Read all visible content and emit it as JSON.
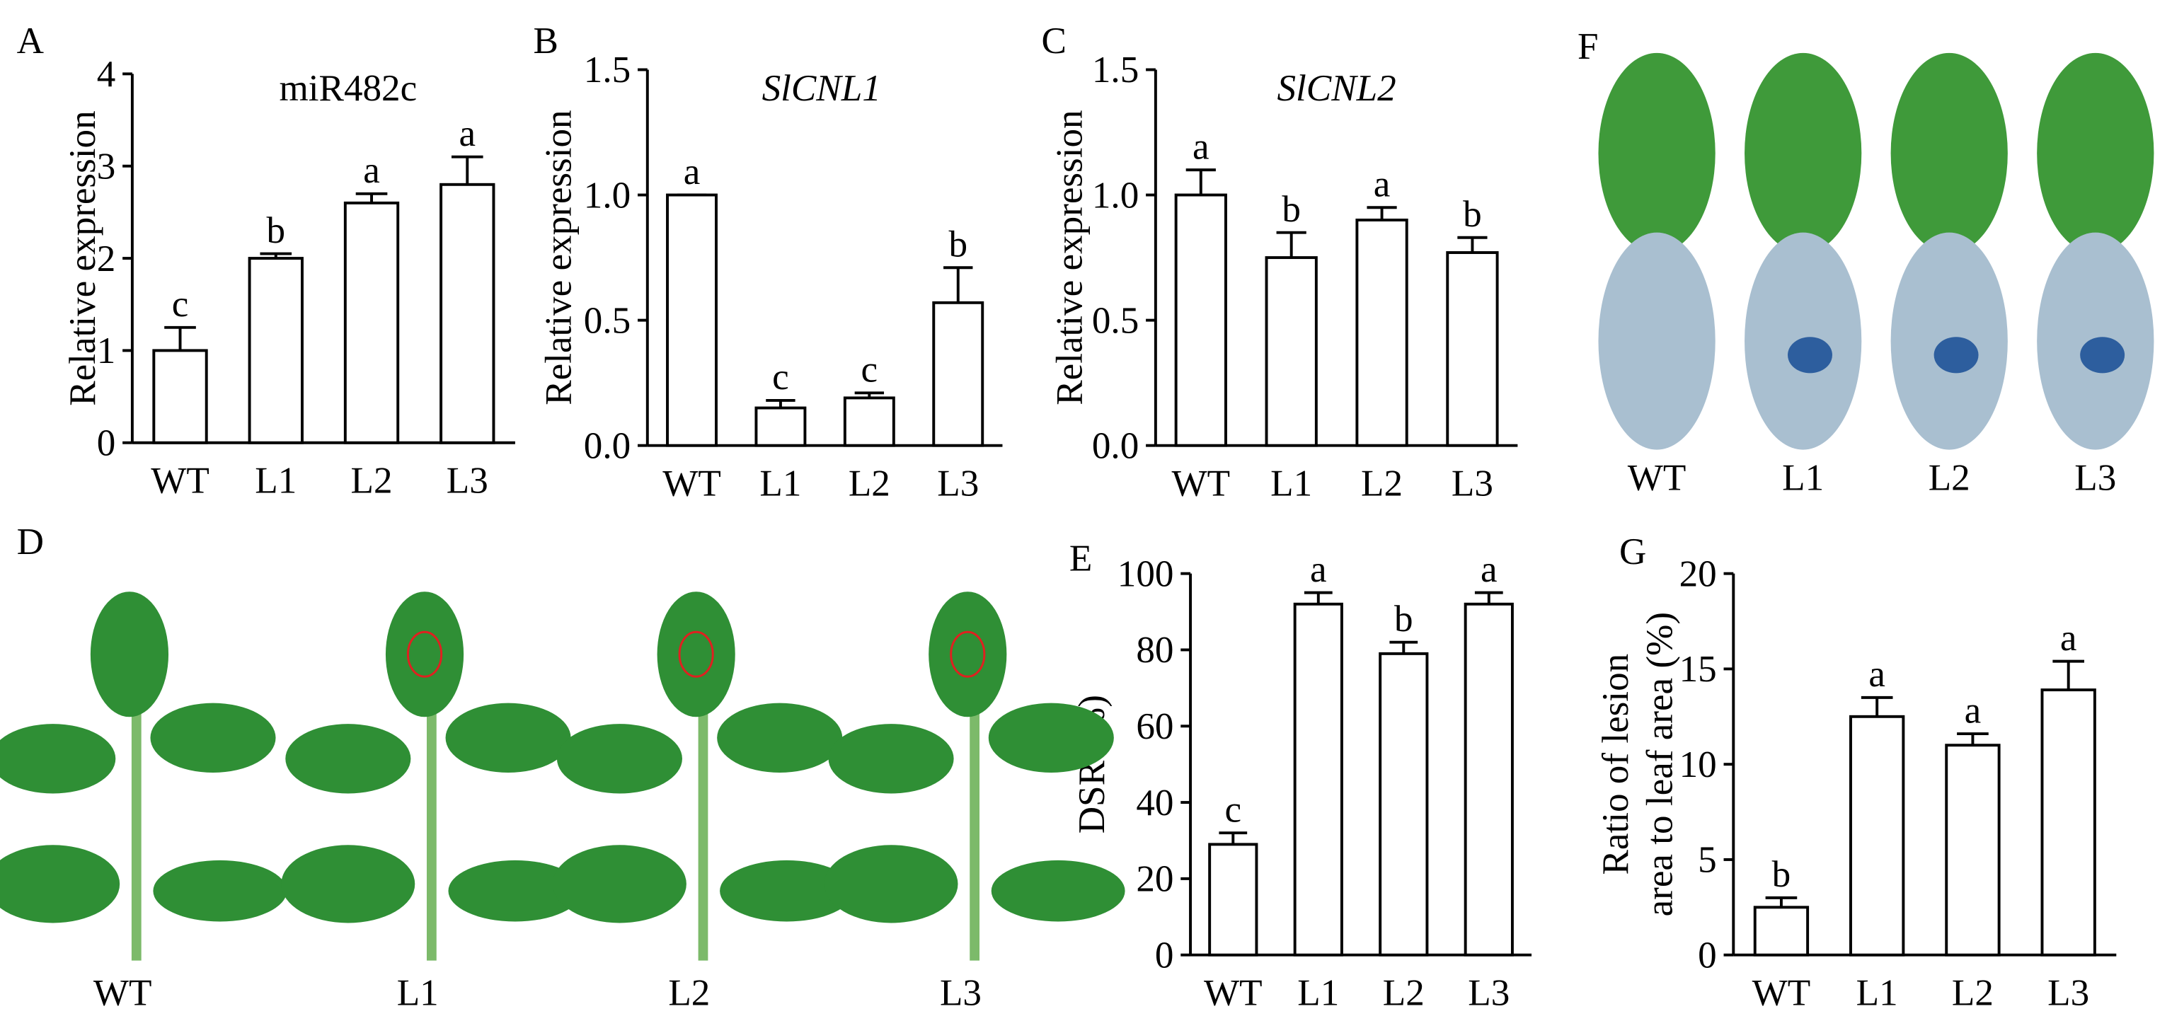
{
  "chart_data": [
    {
      "type": "bar",
      "panel": "A",
      "title": "miR482c",
      "title_style": "normal",
      "y_label": [
        "Relative expression"
      ],
      "categories": [
        "WT",
        "L1",
        "L2",
        "L3"
      ],
      "values": [
        1,
        2,
        2.6,
        2.8
      ],
      "errors": [
        0.25,
        0.05,
        0.1,
        0.3
      ],
      "annotations": [
        "c",
        "b",
        "a",
        "a"
      ],
      "color": "#ffffff",
      "edge_color": "#000000",
      "ylim": [
        0,
        4
      ],
      "yticks": [
        0,
        1,
        2,
        3,
        4
      ]
    },
    {
      "type": "bar",
      "panel": "B",
      "title": "SlCNL1",
      "title_style": "italic",
      "y_label": [
        "Relative expression"
      ],
      "categories": [
        "WT",
        "L1",
        "L2",
        "L3"
      ],
      "values": [
        1,
        0.15,
        0.19,
        0.57
      ],
      "errors": [
        0,
        0.03,
        0.02,
        0.14
      ],
      "annotations": [
        "a",
        "c",
        "c",
        "b"
      ],
      "color": "#ffffff",
      "edge_color": "#000000",
      "ylim": [
        0,
        1.5
      ],
      "yticks": [
        {
          "value": 0,
          "label": "0.0"
        },
        0.5,
        {
          "value": 1,
          "label": "1.0"
        },
        1.5
      ]
    },
    {
      "type": "bar",
      "panel": "C",
      "title": "SlCNL2",
      "title_style": "italic",
      "y_label": [
        "Relative expression"
      ],
      "categories": [
        "WT",
        "L1",
        "L2",
        "L3"
      ],
      "values": [
        1,
        0.75,
        0.9,
        0.77
      ],
      "errors": [
        0.1,
        0.1,
        0.05,
        0.06
      ],
      "annotations": [
        "a",
        "b",
        "a",
        "b"
      ],
      "color": "#ffffff",
      "edge_color": "#000000",
      "ylim": [
        0,
        1.5
      ],
      "yticks": [
        {
          "value": 0,
          "label": "0.0"
        },
        0.5,
        {
          "value": 1,
          "label": "1.0"
        },
        1.5
      ]
    },
    {
      "type": "bar",
      "panel": "E",
      "y_label": [
        "DSR (%)"
      ],
      "categories": [
        "WT",
        "L1",
        "L2",
        "L3"
      ],
      "values": [
        29,
        92,
        79,
        92
      ],
      "errors": [
        3,
        3,
        3,
        3
      ],
      "annotations": [
        "c",
        "a",
        "b",
        "a"
      ],
      "color": "#ffffff",
      "edge_color": "#000000",
      "ylim": [
        0,
        100
      ],
      "yticks": [
        0,
        20,
        40,
        60,
        80,
        100
      ]
    },
    {
      "type": "bar",
      "panel": "G",
      "y_label": [
        "Ratio of lesion",
        "area to leaf area (%)"
      ],
      "categories": [
        "WT",
        "L1",
        "L2",
        "L3"
      ],
      "values": [
        2.5,
        12.5,
        11,
        13.9
      ],
      "errors": [
        0.5,
        1,
        0.6,
        1.5
      ],
      "annotations": [
        "b",
        "a",
        "a",
        "a"
      ],
      "color": "#ffffff",
      "edge_color": "#000000",
      "ylim": [
        0,
        20
      ],
      "yticks": [
        0,
        5,
        10,
        15,
        20
      ]
    }
  ],
  "photos": [
    {
      "panel": "F",
      "captions": [
        "WT",
        "L1",
        "L2",
        "L3"
      ]
    },
    {
      "panel": "D",
      "captions": [
        "WT",
        "L1",
        "L2",
        "L3"
      ]
    }
  ]
}
